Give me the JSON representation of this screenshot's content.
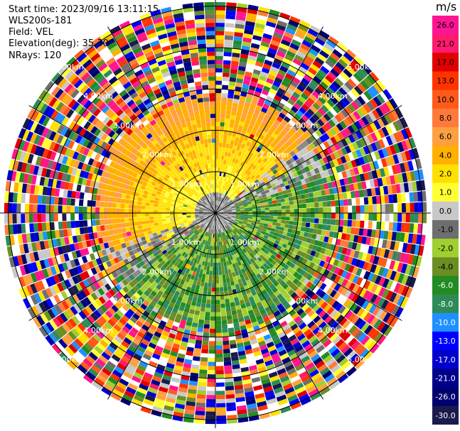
{
  "header": {
    "start_time": "Start time: 2023/09/16 13:11:15",
    "radar": "WLS200s-181",
    "field": "Field: VEL",
    "elevation": "Elevation(deg): 35.30",
    "nrays": "NRays: 120"
  },
  "colorbar": {
    "unit": "m/s",
    "ticks": [
      "26.0",
      "21.0",
      "17.0",
      "13.0",
      "10.0",
      "8.0",
      "6.0",
      "4.0",
      "2.0",
      "1.0",
      "0.0",
      "-1.0",
      "-2.0",
      "-4.0",
      "-6.0",
      "-8.0",
      "-10.0",
      "-13.0",
      "-17.0",
      "-21.0",
      "-26.0",
      "-30.0"
    ],
    "colors": [
      "#ff1493",
      "#ff1a6e",
      "#e00000",
      "#ff3300",
      "#ff5a1a",
      "#ff7a3a",
      "#ffa040",
      "#ffb000",
      "#ffe000",
      "#ffff33",
      "#c8c8c8",
      "#6e6e6e",
      "#a0cf30",
      "#6b8e23",
      "#228b22",
      "#2e8b57",
      "#1e90ff",
      "#0000ff",
      "#0000cd",
      "#00008b",
      "#000070",
      "#1a1a4d"
    ]
  },
  "chart_data": {
    "type": "heatmap",
    "projection": "polar PPI",
    "field": "VEL",
    "units": "m/s",
    "n_rays": 120,
    "range_ring_labels": [
      "1.00km",
      "2.00km",
      "3.00km",
      "4.00km",
      "5.00km"
    ],
    "range_rings_km": [
      1,
      2,
      3,
      4,
      5
    ],
    "max_range_km": 5.2,
    "color_scale_min": -30.0,
    "color_scale_max": 26.0,
    "pattern": {
      "positive_sector_deg": [
        240,
        60
      ],
      "negative_sector_deg": [
        60,
        240
      ],
      "noise_beyond_km": 2.9
    }
  }
}
